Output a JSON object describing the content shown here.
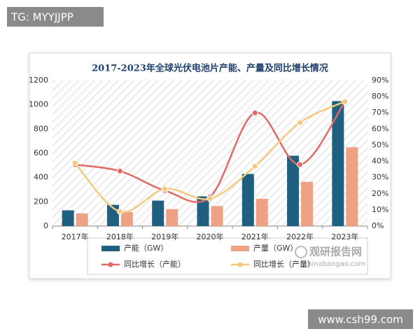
{
  "overlay": {
    "tag": "TG: MYYJJPP",
    "logo": "观研报告网",
    "logo_url": "chinabaogao.com",
    "source": "www.csh99.com"
  },
  "chart_data": {
    "type": "combo",
    "title": "2017-2023年全球光伏电池片产能、产量及同比增长情况",
    "categories": [
      "2017年",
      "2018年",
      "2019年",
      "2020年",
      "2021年",
      "2022年",
      "2023年"
    ],
    "series": [
      {
        "name": "产能（GW）",
        "type": "bar",
        "color": "#1f5f80",
        "values": [
          130,
          175,
          210,
          245,
          430,
          580,
          1030
        ]
      },
      {
        "name": "产量（GW）",
        "type": "bar",
        "color": "#eea283",
        "values": [
          105,
          115,
          140,
          165,
          225,
          365,
          650
        ]
      },
      {
        "name": "同比增长（产能）",
        "type": "line",
        "axis": "y2",
        "color": "#e06a66",
        "values": [
          38,
          34,
          22,
          18,
          70,
          38,
          77
        ]
      },
      {
        "name": "同比增长（产量）",
        "type": "line",
        "axis": "y2",
        "color": "#f5c97e",
        "values": [
          39,
          9,
          23,
          17,
          37,
          64,
          77
        ]
      }
    ],
    "ylim": [
      0,
      1200
    ],
    "yticks": [
      0,
      200,
      400,
      600,
      800,
      1000,
      1200
    ],
    "y2lim": [
      0,
      90
    ],
    "y2ticks": [
      {
        "value": 0,
        "label": "0%"
      },
      {
        "value": 10,
        "label": "10%"
      },
      {
        "value": 20,
        "label": "20%"
      },
      {
        "value": 30,
        "label": "30%"
      },
      {
        "value": 40,
        "label": "40%"
      },
      {
        "value": 50,
        "label": "50%"
      },
      {
        "value": 60,
        "label": "60%"
      },
      {
        "value": 70,
        "label": "70%"
      },
      {
        "value": 80,
        "label": "80%"
      },
      {
        "value": 90,
        "label": "90%"
      }
    ],
    "grid": false,
    "legend": "bottom"
  }
}
